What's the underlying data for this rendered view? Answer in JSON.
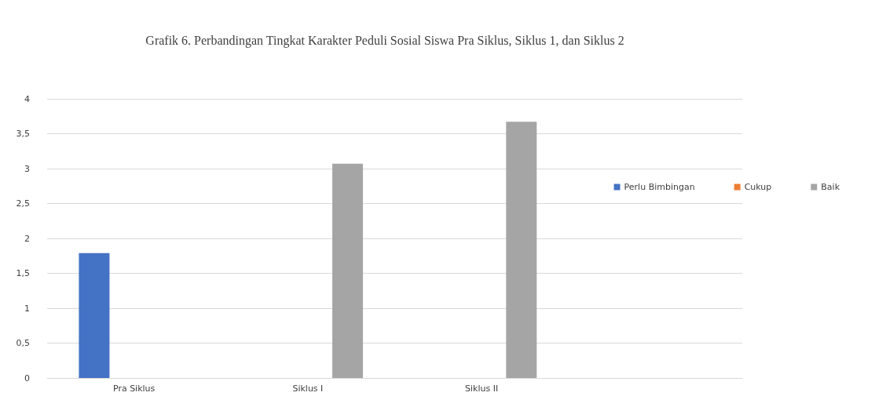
{
  "chart_data": {
    "type": "bar",
    "title": "Grafik 6. Perbandingan Tingkat Karakter Peduli Sosial Siswa Pra Siklus, Siklus 1, dan Siklus 2",
    "categories": [
      "Pra Siklus",
      "Siklus I",
      "Siklus II",
      null
    ],
    "series": [
      {
        "name": "Perlu Bimbingan",
        "color": "#4472c4",
        "values": [
          1.79,
          null,
          null,
          null
        ]
      },
      {
        "name": "Cukup",
        "color": "#ed7d31",
        "values": [
          null,
          null,
          null,
          null
        ]
      },
      {
        "name": "Baik",
        "color": "#a5a5a5",
        "values": [
          null,
          3.07,
          3.67,
          null
        ]
      }
    ],
    "ylim": [
      0,
      4
    ],
    "yticks": [
      0,
      {
        "value": 0.5,
        "label": "0,5"
      },
      1,
      {
        "value": 1.5,
        "label": "1,5"
      },
      2,
      {
        "value": 2.5,
        "label": "2,5"
      },
      3,
      {
        "value": 3.5,
        "label": "3,5"
      },
      4
    ],
    "grid": "y",
    "legend": "right"
  }
}
